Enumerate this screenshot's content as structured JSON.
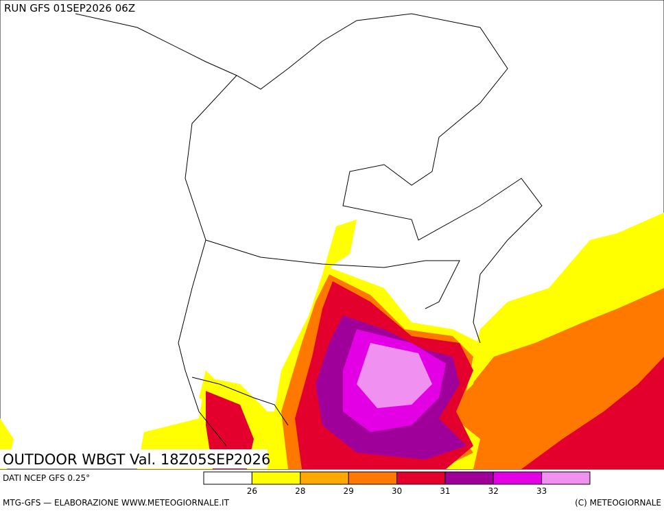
{
  "header": {
    "run": "RUN GFS 01SEP2026 06Z"
  },
  "map": {
    "title": "OUTDOOR WBGT Val. 18Z05SEP2026"
  },
  "legend": {
    "levels": [
      26,
      28,
      29,
      30,
      31,
      32,
      33
    ],
    "colors": [
      "#ffffff",
      "#ffff00",
      "#ffa800",
      "#ff7800",
      "#e4002c",
      "#a0009a",
      "#e400e4",
      "#f090f0"
    ]
  },
  "footer": {
    "source": "DATI NCEP GFS 0.25°",
    "credit": "MTG-GFS — ELABORAZIONE WWW.METEOGIORNALE.IT",
    "copyright": "(C) METEOGIORNALE"
  }
}
